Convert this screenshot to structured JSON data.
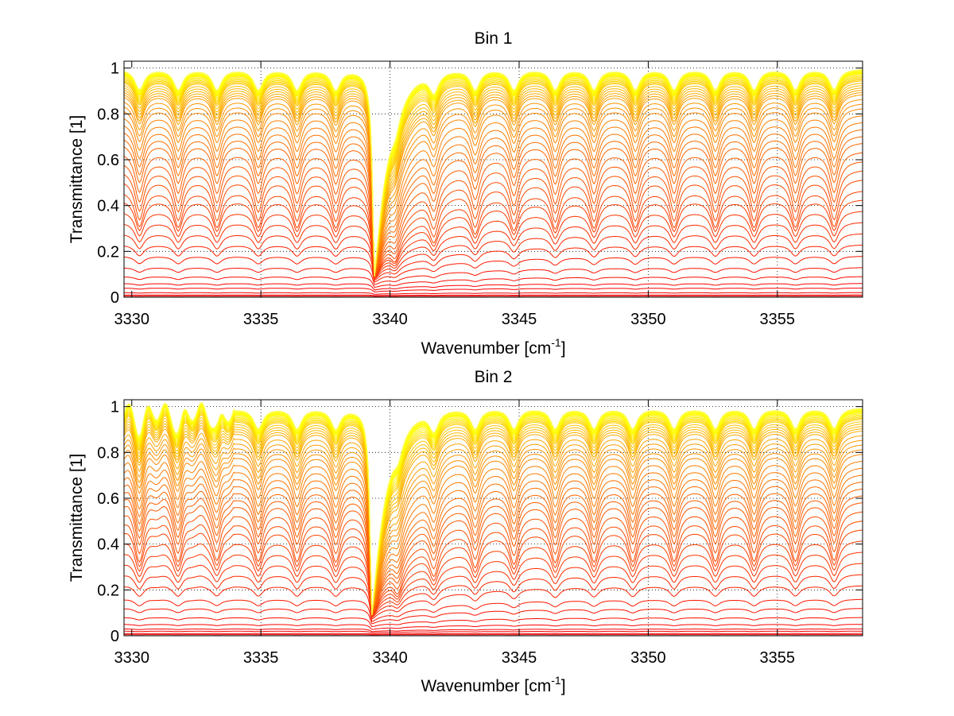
{
  "chart_data": [
    {
      "type": "line",
      "title": "Bin 1",
      "xlabel_main": "Wavenumber [cm",
      "xlabel_sup": "-1",
      "xlabel_end": "]",
      "ylabel": "Transmittance [1]",
      "xlim": [
        3329.7,
        3358.3
      ],
      "ylim": [
        0,
        1.03
      ],
      "xticks": [
        3330,
        3335,
        3340,
        3345,
        3350,
        3355
      ],
      "yticks": [
        0,
        0.2,
        0.4,
        0.6,
        0.8,
        1
      ],
      "xtick_labels": [
        "3330",
        "3335",
        "3340",
        "3345",
        "3350",
        "3355"
      ],
      "ytick_labels": [
        "0",
        "0.2",
        "0.4",
        "0.6",
        "0.8",
        "1"
      ],
      "grid": true,
      "grid_style": "dotted",
      "series_count": 50,
      "series_levels_at_3358": [
        0.0,
        0.005,
        0.01,
        0.02,
        0.04,
        0.06,
        0.09,
        0.13,
        0.18,
        0.23,
        0.28,
        0.33,
        0.38,
        0.43,
        0.47,
        0.52,
        0.56,
        0.6,
        0.64,
        0.68,
        0.71,
        0.74,
        0.77,
        0.8,
        0.83,
        0.85,
        0.87,
        0.89,
        0.9,
        0.91,
        0.92,
        0.93,
        0.94,
        0.95,
        0.955,
        0.96,
        0.965,
        0.97,
        0.975,
        0.98,
        0.983,
        0.986,
        0.988,
        0.99,
        0.992,
        0.994,
        0.995,
        0.996,
        0.997,
        0.998
      ],
      "absorption_lines": [
        3330.3,
        3331.8,
        3333.3,
        3334.9,
        3336.4,
        3337.9,
        3339.4,
        3340.2,
        3341.7,
        3343.3,
        3344.8,
        3346.4,
        3347.9,
        3349.5,
        3351.0,
        3352.6,
        3354.1,
        3355.7,
        3357.2
      ],
      "strong_line": 3339.4,
      "colormap": "hot"
    },
    {
      "type": "line",
      "title": "Bin 2",
      "xlabel_main": "Wavenumber [cm",
      "xlabel_sup": "-1",
      "xlabel_end": "]",
      "ylabel": "Transmittance [1]",
      "xlim": [
        3329.7,
        3358.3
      ],
      "ylim": [
        0,
        1.03
      ],
      "xticks": [
        3330,
        3335,
        3340,
        3345,
        3350,
        3355
      ],
      "yticks": [
        0,
        0.2,
        0.4,
        0.6,
        0.8,
        1
      ],
      "xtick_labels": [
        "3330",
        "3335",
        "3340",
        "3345",
        "3350",
        "3355"
      ],
      "ytick_labels": [
        "0",
        "0.2",
        "0.4",
        "0.6",
        "0.8",
        "1"
      ],
      "grid": true,
      "grid_style": "dotted",
      "series_count": 50,
      "series_levels_at_3358": [
        0.0,
        0.005,
        0.01,
        0.02,
        0.03,
        0.05,
        0.08,
        0.12,
        0.16,
        0.22,
        0.27,
        0.32,
        0.37,
        0.42,
        0.47,
        0.51,
        0.55,
        0.59,
        0.62,
        0.65,
        0.68,
        0.71,
        0.74,
        0.77,
        0.8,
        0.82,
        0.84,
        0.86,
        0.88,
        0.9,
        0.91,
        0.92,
        0.93,
        0.94,
        0.95,
        0.955,
        0.96,
        0.965,
        0.97,
        0.975,
        0.98,
        0.983,
        0.986,
        0.988,
        0.99,
        0.992,
        0.994,
        0.995,
        0.996,
        0.997
      ],
      "absorption_lines": [
        3330.3,
        3331.8,
        3333.3,
        3334.9,
        3336.4,
        3337.9,
        3339.3,
        3340.3,
        3341.7,
        3343.3,
        3344.8,
        3346.4,
        3347.9,
        3349.4,
        3351.0,
        3352.6,
        3354.1,
        3355.7,
        3357.2
      ],
      "strong_line": 3339.3,
      "colormap": "hot"
    }
  ]
}
